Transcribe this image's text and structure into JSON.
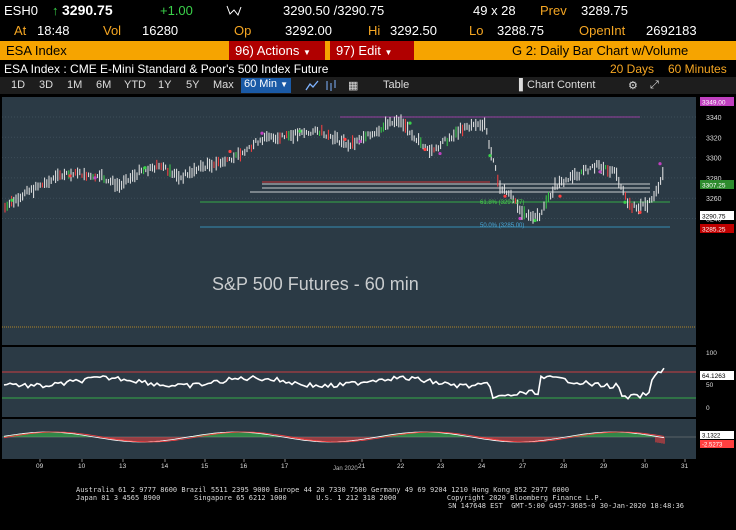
{
  "quote": {
    "ticker": "ESH0",
    "last": "3290.75",
    "change": "+1.00",
    "time_label": "At",
    "time": "18:48",
    "vol_label": "Vol",
    "vol": "16280",
    "bid_ask": "3290.50 /3290.75",
    "size": "49 x 28",
    "prev_label": "Prev",
    "prev": "3289.75",
    "open_label": "Op",
    "open": "3292.00",
    "hi_label": "Hi",
    "hi": "3292.50",
    "lo_label": "Lo",
    "lo": "3288.75",
    "openint_label": "OpenInt",
    "openint": "2692183"
  },
  "command_bar": {
    "security": "ESA Index",
    "actions_num": "96)",
    "actions": "Actions",
    "edit_num": "97)",
    "edit": "Edit",
    "function_title": "G 2: Daily Bar Chart w/Volume"
  },
  "title_bar": {
    "security_desc": "ESA Index : CME E-Mini Standard & Poor's 500 Index Future",
    "range": "20 Days",
    "interval": "60 Minutes"
  },
  "toolbar": {
    "periods": [
      "1D",
      "3D",
      "1M",
      "6M",
      "YTD",
      "1Y",
      "5Y",
      "Max"
    ],
    "active_period": "60 Min",
    "table": "Table",
    "chart_content": "Chart Content"
  },
  "chart": {
    "watermark": "S&P 500 Futures - 60 min",
    "price_ticks": [
      "3340",
      "3320",
      "3300",
      "3280",
      "3260",
      "3240"
    ],
    "price_tags": [
      {
        "text": "3349.00",
        "color": "#c040c0"
      },
      {
        "text": "3307.25",
        "color": "#2e8b2e"
      },
      {
        "text": "3290.75",
        "color": "#000000"
      },
      {
        "text": "3285.25",
        "color": "#c00000"
      }
    ],
    "fib_labels": [
      "61.8% (3297.27)",
      "50.0% (3285.00)"
    ],
    "osc1_ticks": [
      "100",
      "50",
      "0"
    ],
    "osc1_value": "64.1263",
    "osc2_values": [
      "3.1322",
      "-2.5273"
    ],
    "date_labels": [
      "09",
      "10",
      "13",
      "14",
      "15",
      "16",
      "17",
      "21",
      "22",
      "23",
      "24",
      "27",
      "28",
      "29",
      "30",
      "31"
    ],
    "month_label": "Jan 2020"
  },
  "footer": {
    "line1": "Australia 61 2 9777 8600 Brazil 5511 2395 9000 Europe 44 20 7330 7500 Germany 49 69 9204 1210 Hong Kong 852 2977 6000",
    "line2": "Japan 81 3 4565 8900        Singapore 65 6212 1000       U.S. 1 212 318 2000            Copyright 2020 Bloomberg Finance L.P.",
    "line3": "SN 147648 EST  GMT-5:00 G457-3685-0 30-Jan-2020 18:48:36"
  }
}
